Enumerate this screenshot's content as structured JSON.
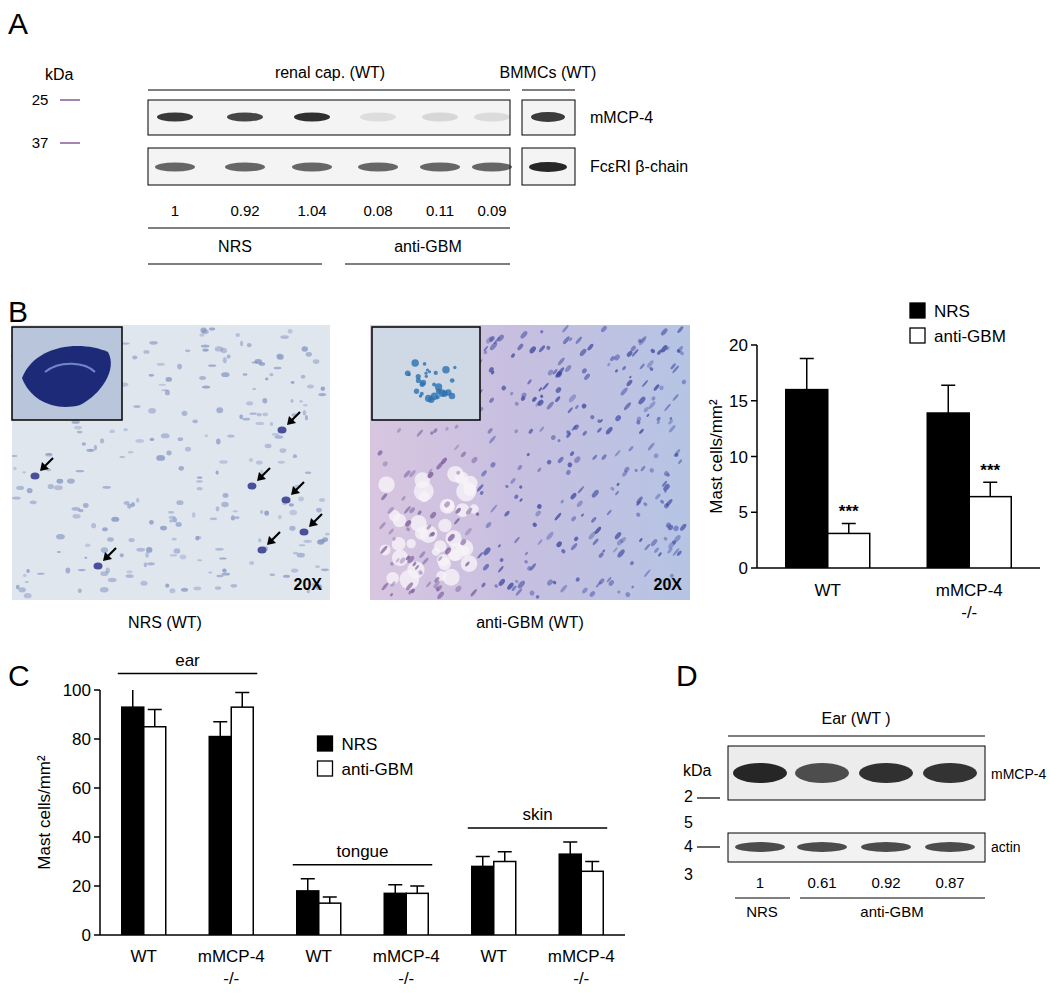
{
  "panels": {
    "A": {
      "label": "A",
      "unit": "kDa",
      "sample_header": "renal cap. (WT)",
      "control_header": "BMMCs (WT)",
      "markers": [
        25,
        37
      ],
      "blots": [
        "mMCP-4",
        "FcεRI β-chain"
      ],
      "ratios": [
        1,
        0.92,
        1.04,
        0.08,
        0.11,
        0.09
      ],
      "groups": [
        "NRS",
        "anti-GBM"
      ]
    },
    "B": {
      "label": "B",
      "images": [
        {
          "caption": "NRS (WT)",
          "magnification": "20X"
        },
        {
          "caption": "anti-GBM (WT)",
          "magnification": "20X"
        }
      ]
    },
    "C": {
      "label": "C"
    },
    "D": {
      "label": "D",
      "header": "Ear (WT )",
      "unit": "kDa",
      "marker_digits": [
        "2",
        "5",
        "4",
        "3"
      ],
      "blots": [
        "mMCP-4",
        "actin"
      ],
      "ratios": [
        1,
        0.61,
        0.92,
        0.87
      ],
      "groups": [
        "NRS",
        "anti-GBM"
      ]
    }
  },
  "chart_data": [
    {
      "type": "bar",
      "y_label": "Mast cells/mm²",
      "categories": [
        "WT",
        "mMCP-4 -/-"
      ],
      "series": [
        {
          "name": "NRS",
          "color": "#000000",
          "values": [
            16,
            13.9
          ],
          "errors": [
            2.8,
            2.5
          ]
        },
        {
          "name": "anti-GBM",
          "color": "#ffffff",
          "values": [
            3.1,
            6.4
          ],
          "errors": [
            0.9,
            1.3
          ],
          "annotations": [
            "***",
            "***"
          ]
        }
      ],
      "ylim": [
        0,
        20
      ],
      "yticks": [
        0,
        5,
        10,
        15,
        20
      ],
      "legend": "upper right"
    },
    {
      "type": "bar",
      "y_label": "Mast cells/mm²",
      "groups": [
        "ear",
        "tongue",
        "skin"
      ],
      "categories": [
        "WT",
        "mMCP-4 -/-",
        "WT",
        "mMCP-4 -/-",
        "WT",
        "mMCP-4 -/-"
      ],
      "series": [
        {
          "name": "NRS",
          "color": "#000000",
          "values": [
            93,
            81,
            18,
            17,
            28,
            33
          ],
          "errors": [
            8,
            6,
            5,
            3.5,
            4,
            5
          ]
        },
        {
          "name": "anti-GBM",
          "color": "#ffffff",
          "values": [
            85,
            93,
            13,
            17,
            30,
            26
          ],
          "errors": [
            7,
            6,
            2.5,
            3,
            4,
            4
          ]
        }
      ],
      "ylim": [
        0,
        100
      ],
      "yticks": [
        0,
        20,
        40,
        60,
        80,
        100
      ],
      "legend": "upper center"
    }
  ]
}
